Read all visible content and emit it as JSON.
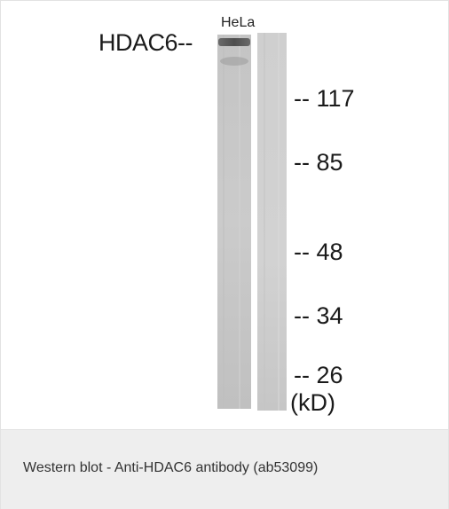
{
  "blot": {
    "lane_label": "HeLa",
    "protein_label": "HDAC6--",
    "markers": [
      {
        "label": "-- 117"
      },
      {
        "label": "-- 85"
      },
      {
        "label": "-- 48"
      },
      {
        "label": "-- 34"
      },
      {
        "label": "-- 26"
      }
    ],
    "unit_label": "(kD)"
  },
  "caption": {
    "text": "Western blot - Anti-HDAC6 antibody (ab53099)"
  },
  "colors": {
    "lane_background": "#c9c9c9",
    "band": "#5a5a5a",
    "caption_background": "#eeeeee"
  }
}
